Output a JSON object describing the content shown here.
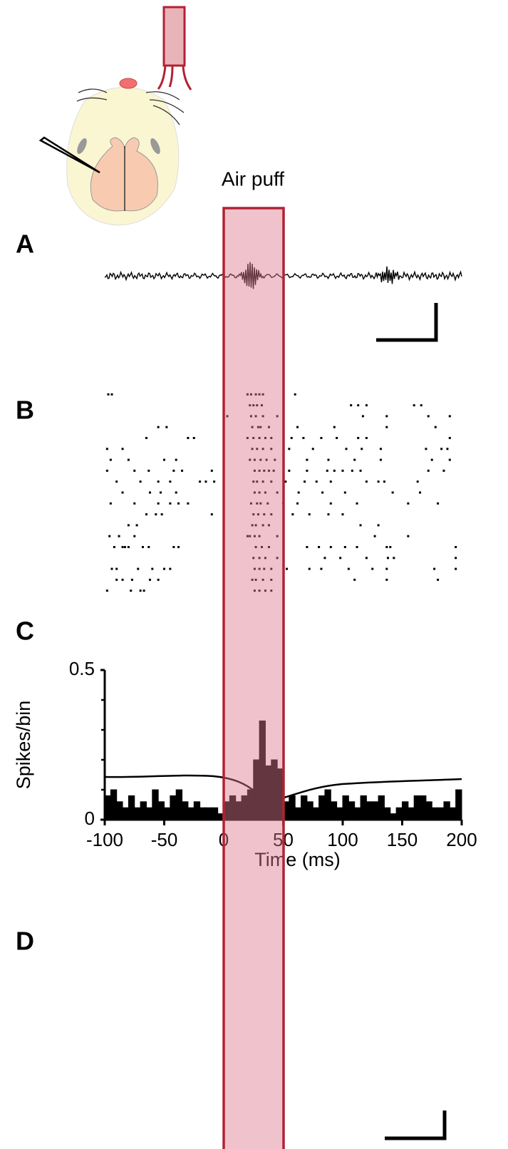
{
  "stimulus_label": "Air puff",
  "panel_labels": [
    "A",
    "B",
    "C",
    "D"
  ],
  "chart_data": [
    {
      "type": "raster",
      "xlim": [
        -100,
        200
      ],
      "ylim": [
        0,
        20
      ],
      "color": "#000000",
      "trials": [
        [
          -97,
          -94,
          20,
          23,
          27,
          30,
          33,
          60
        ],
        [
          22,
          25,
          28,
          32,
          107,
          113,
          120,
          160,
          166
        ],
        [
          3,
          23,
          27,
          33,
          45,
          117,
          137,
          172,
          190
        ],
        [
          -55,
          -48,
          24,
          29,
          31,
          38,
          62,
          93,
          137,
          178
        ],
        [
          -65,
          -30,
          -25,
          20,
          25,
          30,
          35,
          40,
          57,
          67,
          82,
          95,
          113,
          120,
          190
        ],
        [
          -98,
          -85,
          24,
          28,
          33,
          40,
          55,
          75,
          103,
          116,
          132,
          170,
          183,
          188
        ],
        [
          -95,
          -80,
          -50,
          -40,
          22,
          26,
          31,
          36,
          43,
          70,
          88,
          110,
          132,
          175,
          190
        ],
        [
          -98,
          -75,
          -63,
          -42,
          -35,
          -10,
          26,
          30,
          34,
          38,
          42,
          55,
          70,
          87,
          93,
          100,
          108,
          115,
          172,
          185
        ],
        [
          -90,
          -70,
          -55,
          -45,
          -20,
          -15,
          -8,
          25,
          28,
          33,
          40,
          52,
          68,
          78,
          90,
          120,
          130,
          135,
          163
        ],
        [
          -85,
          -62,
          -53,
          -40,
          26,
          30,
          35,
          45,
          63,
          83,
          102,
          142,
          165
        ],
        [
          -95,
          -75,
          -55,
          -45,
          -38,
          -30,
          23,
          28,
          31,
          37,
          50,
          62,
          90,
          112,
          155,
          180
        ],
        [
          -65,
          -57,
          -52,
          -10,
          25,
          29,
          34,
          40,
          58,
          72,
          88,
          100
        ],
        [
          -80,
          -73,
          24,
          27,
          33,
          38,
          115,
          130
        ],
        [
          -96,
          -88,
          -75,
          20,
          22,
          26,
          30,
          45,
          127,
          155
        ],
        [
          -92,
          -85,
          -83,
          -80,
          -68,
          -63,
          -42,
          -38,
          0,
          27,
          32,
          38,
          70,
          80,
          90,
          102,
          112,
          137,
          140,
          195
        ],
        [
          0,
          25,
          30,
          35,
          45,
          85,
          98,
          120,
          138,
          143,
          195
        ],
        [
          -94,
          -90,
          -72,
          -60,
          -50,
          -45,
          0,
          26,
          30,
          34,
          40,
          53,
          72,
          82,
          105,
          125,
          137,
          177,
          195
        ],
        [
          -90,
          -85,
          -77,
          -62,
          -55,
          24,
          27,
          33,
          40,
          110,
          137,
          180
        ],
        [
          -98,
          -78,
          -70,
          -67,
          26,
          30,
          35,
          40
        ]
      ]
    },
    {
      "type": "histogram",
      "color": "#000000",
      "ylabel": "Spikes/bin",
      "xlabel": "Time (ms)",
      "xlim": [
        -100,
        200
      ],
      "xticks": [
        -100,
        -50,
        0,
        50,
        100,
        150,
        200
      ],
      "ylim": [
        0,
        0.5
      ],
      "yticks": [
        0,
        0.5
      ],
      "yminorticks": [
        0.1,
        0.2,
        0.3,
        0.4
      ],
      "bins": [
        -100,
        -95,
        -90,
        -85,
        -80,
        -75,
        -70,
        -65,
        -60,
        -55,
        -50,
        -45,
        -40,
        -35,
        -30,
        -25,
        -20,
        -15,
        -10,
        -5,
        0,
        5,
        10,
        15,
        20,
        25,
        30,
        35,
        40,
        45,
        50,
        55,
        60,
        65,
        70,
        75,
        80,
        85,
        90,
        95,
        100,
        105,
        110,
        115,
        120,
        125,
        130,
        135,
        140,
        145,
        150,
        155,
        160,
        165,
        170,
        175,
        180,
        185,
        190,
        195,
        200
      ],
      "values": [
        0.08,
        0.1,
        0.06,
        0.04,
        0.08,
        0.04,
        0.06,
        0.04,
        0.1,
        0.06,
        0.04,
        0.08,
        0.1,
        0.06,
        0.04,
        0.06,
        0.04,
        0.04,
        0.04,
        0.02,
        0.06,
        0.08,
        0.06,
        0.08,
        0.1,
        0.2,
        0.33,
        0.18,
        0.2,
        0.17,
        0.06,
        0.08,
        0.04,
        0.08,
        0.06,
        0.04,
        0.08,
        0.1,
        0.06,
        0.04,
        0.08,
        0.06,
        0.04,
        0.08,
        0.06,
        0.06,
        0.08,
        0.04,
        0.02,
        0.04,
        0.06,
        0.04,
        0.08,
        0.08,
        0.06,
        0.04,
        0.04,
        0.06,
        0.04,
        0.1
      ]
    }
  ]
}
